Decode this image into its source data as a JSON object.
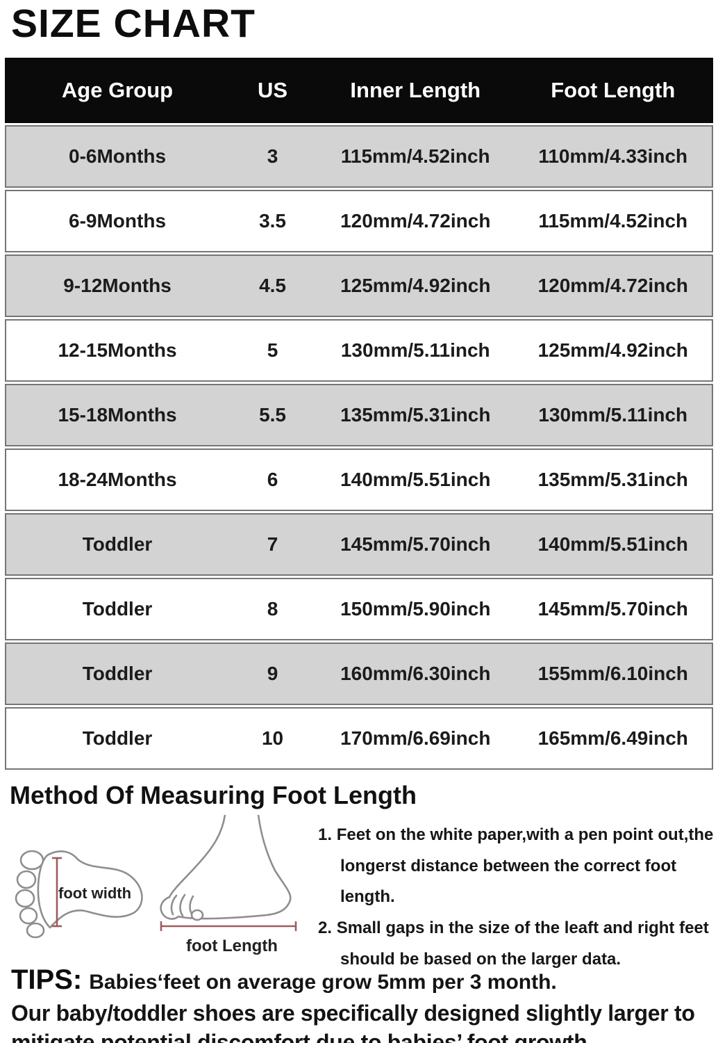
{
  "title": "SIZE CHART",
  "table": {
    "headers": [
      "Age Group",
      "US",
      "Inner Length",
      "Foot Length"
    ],
    "rows": [
      [
        "0-6Months",
        "3",
        "115mm/4.52inch",
        "110mm/4.33inch"
      ],
      [
        "6-9Months",
        "3.5",
        "120mm/4.72inch",
        "115mm/4.52inch"
      ],
      [
        "9-12Months",
        "4.5",
        "125mm/4.92inch",
        "120mm/4.72inch"
      ],
      [
        "12-15Months",
        "5",
        "130mm/5.11inch",
        "125mm/4.92inch"
      ],
      [
        "15-18Months",
        "5.5",
        "135mm/5.31inch",
        "130mm/5.11inch"
      ],
      [
        "18-24Months",
        "6",
        "140mm/5.51inch",
        "135mm/5.31inch"
      ],
      [
        "Toddler",
        "7",
        "145mm/5.70inch",
        "140mm/5.51inch"
      ],
      [
        "Toddler",
        "8",
        "150mm/5.90inch",
        "145mm/5.70inch"
      ],
      [
        "Toddler",
        "9",
        "160mm/6.30inch",
        "155mm/6.10inch"
      ],
      [
        "Toddler",
        "10",
        "170mm/6.69inch",
        "165mm/6.49inch"
      ]
    ]
  },
  "method": {
    "heading": "Method Of Measuring Foot Length",
    "foot_width_label": "foot width",
    "foot_length_label": "foot Length",
    "instructions": [
      {
        "number": "1.",
        "text": "Feet on the white paper,with a pen point out,the longerst distance between the correct foot length."
      },
      {
        "number": "2.",
        "text": "Small gaps in the size of the leaft and right feet should be based on the larger data."
      }
    ]
  },
  "tips": {
    "label": "TIPS:",
    "line1": "Babies‘feet on average grow 5mm per 3 month.",
    "paragraph": "Our baby/toddler shoes are specifically designed slightly larger to mitigate potential discomfort due to babies’ foot growth"
  },
  "colors": {
    "header_bg": "#0a0a0a",
    "header_text": "#ffffff",
    "row_gray": "#d3d3d3",
    "row_white": "#ffffff",
    "row_border": "#757575",
    "text": "#1b1b1b",
    "measure_line": "#9d5c5c",
    "foot_outline": "#8e8e8e"
  }
}
